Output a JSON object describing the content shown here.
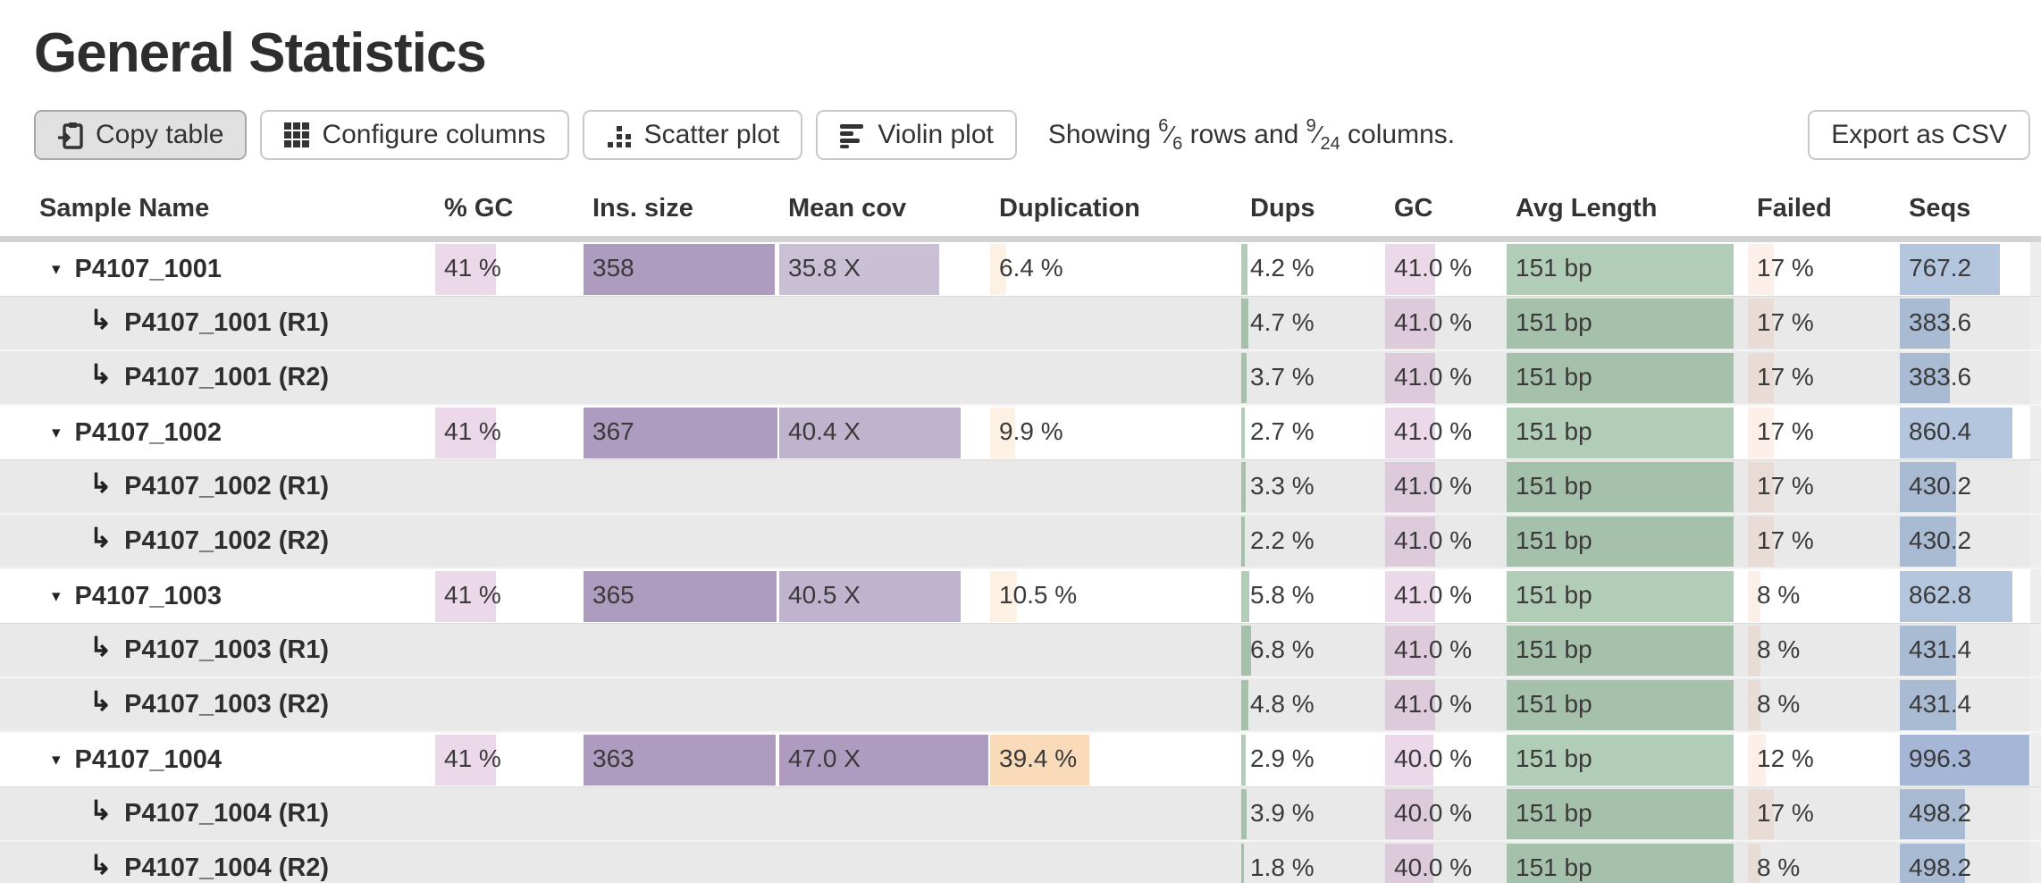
{
  "page": {
    "title": "General Statistics"
  },
  "toolbar": {
    "copy_label": "Copy table",
    "configure_label": "Configure columns",
    "scatter_label": "Scatter plot",
    "violin_label": "Violin plot",
    "export_label": "Export as CSV",
    "showing": {
      "prefix": "Showing",
      "rows_shown": "6",
      "rows_total": "6",
      "middle": "rows and",
      "cols_shown": "9",
      "cols_total": "24",
      "suffix": "columns."
    }
  },
  "icons": {
    "copy": "clipboard-icon",
    "configure": "grid-icon",
    "scatter": "scatter-dots-icon",
    "violin": "violin-bars-icon",
    "collapse_marker": "▾",
    "subrow_marker": "↳"
  },
  "colors": {
    "pink": "rgba(202,153,196,0.38)",
    "purple_dark": "rgba(80,45,120,0.47)",
    "purple_mid": "rgba(80,45,120,0.36)",
    "purple_light": "rgba(80,45,120,0.30)",
    "purple_partial": "rgba(80,45,120,0.40)",
    "cream_light": "rgba(240,170,90,0.16)",
    "cream_dark": "rgba(240,170,90,0.42)",
    "cream_partial": "rgba(240,170,90,0.38)",
    "green": "rgba(95,150,105,0.48)",
    "salmon": "rgba(235,150,110,0.15)",
    "blue": "rgba(105,140,190,0.50)",
    "blue_dark": "rgba(100,130,185,0.58)"
  },
  "table": {
    "columns": [
      {
        "id": "sample",
        "label": "Sample Name"
      },
      {
        "id": "pct_gc",
        "label": "% GC"
      },
      {
        "id": "ins_size",
        "label": "Ins. size"
      },
      {
        "id": "mean_cov",
        "label": "Mean cov"
      },
      {
        "id": "duplication",
        "label": "Duplication"
      },
      {
        "id": "dups",
        "label": "Dups"
      },
      {
        "id": "gc",
        "label": "GC"
      },
      {
        "id": "avg_length",
        "label": "Avg Length"
      },
      {
        "id": "failed",
        "label": "Failed"
      },
      {
        "id": "seqs",
        "label": "Seqs"
      }
    ],
    "rows": [
      {
        "name": "P4107_1001",
        "type": "main",
        "cells": {
          "pct_gc": {
            "t": "41 %",
            "p": 41,
            "c": "pink"
          },
          "ins_size": {
            "t": "358",
            "p": 97.5,
            "c": "purple_dark"
          },
          "mean_cov": {
            "t": "35.8 X",
            "p": 76,
            "c": "purple_light"
          },
          "duplication": {
            "t": "6.4 %",
            "p": 6.4,
            "c": "cream_light"
          },
          "dups": {
            "t": "4.2 %",
            "p": 4.2,
            "c": "green"
          },
          "gc": {
            "t": "41.0 %",
            "p": 41,
            "c": "pink"
          },
          "avg_length": {
            "t": "151 bp",
            "p": 94,
            "c": "green"
          },
          "failed": {
            "t": "17 %",
            "p": 17,
            "c": "salmon"
          },
          "seqs": {
            "t": "767.2",
            "p": 76.7,
            "c": "blue"
          }
        }
      },
      {
        "name": "P4107_1001 (R1)",
        "type": "sub",
        "cells": {
          "dups": {
            "t": "4.7 %",
            "p": 4.7,
            "c": "green"
          },
          "gc": {
            "t": "41.0 %",
            "p": 41,
            "c": "pink"
          },
          "avg_length": {
            "t": "151 bp",
            "p": 94,
            "c": "green"
          },
          "failed": {
            "t": "17 %",
            "p": 17,
            "c": "salmon"
          },
          "seqs": {
            "t": "383.6",
            "p": 38.4,
            "c": "blue"
          }
        }
      },
      {
        "name": "P4107_1001 (R2)",
        "type": "sub",
        "cells": {
          "dups": {
            "t": "3.7 %",
            "p": 3.7,
            "c": "green"
          },
          "gc": {
            "t": "41.0 %",
            "p": 41,
            "c": "pink"
          },
          "avg_length": {
            "t": "151 bp",
            "p": 94,
            "c": "green"
          },
          "failed": {
            "t": "17 %",
            "p": 17,
            "c": "salmon"
          },
          "seqs": {
            "t": "383.6",
            "p": 38.4,
            "c": "blue"
          }
        }
      },
      {
        "name": "P4107_1002",
        "type": "main",
        "cells": {
          "pct_gc": {
            "t": "41 %",
            "p": 41,
            "c": "pink"
          },
          "ins_size": {
            "t": "367",
            "p": 99,
            "c": "purple_dark"
          },
          "mean_cov": {
            "t": "40.4 X",
            "p": 86,
            "c": "purple_mid"
          },
          "duplication": {
            "t": "9.9 %",
            "p": 9.9,
            "c": "cream_light"
          },
          "dups": {
            "t": "2.7 %",
            "p": 2.7,
            "c": "green"
          },
          "gc": {
            "t": "41.0 %",
            "p": 41,
            "c": "pink"
          },
          "avg_length": {
            "t": "151 bp",
            "p": 94,
            "c": "green"
          },
          "failed": {
            "t": "17 %",
            "p": 17,
            "c": "salmon"
          },
          "seqs": {
            "t": "860.4",
            "p": 86,
            "c": "blue"
          }
        }
      },
      {
        "name": "P4107_1002 (R1)",
        "type": "sub",
        "cells": {
          "dups": {
            "t": "3.3 %",
            "p": 3.3,
            "c": "green"
          },
          "gc": {
            "t": "41.0 %",
            "p": 41,
            "c": "pink"
          },
          "avg_length": {
            "t": "151 bp",
            "p": 94,
            "c": "green"
          },
          "failed": {
            "t": "17 %",
            "p": 17,
            "c": "salmon"
          },
          "seqs": {
            "t": "430.2",
            "p": 43,
            "c": "blue"
          }
        }
      },
      {
        "name": "P4107_1002 (R2)",
        "type": "sub",
        "cells": {
          "dups": {
            "t": "2.2 %",
            "p": 2.2,
            "c": "green"
          },
          "gc": {
            "t": "41.0 %",
            "p": 41,
            "c": "pink"
          },
          "avg_length": {
            "t": "151 bp",
            "p": 94,
            "c": "green"
          },
          "failed": {
            "t": "17 %",
            "p": 17,
            "c": "salmon"
          },
          "seqs": {
            "t": "430.2",
            "p": 43,
            "c": "blue"
          }
        }
      },
      {
        "name": "P4107_1003",
        "type": "main",
        "cells": {
          "pct_gc": {
            "t": "41 %",
            "p": 41,
            "c": "pink"
          },
          "ins_size": {
            "t": "365",
            "p": 98.5,
            "c": "purple_dark"
          },
          "mean_cov": {
            "t": "40.5 X",
            "p": 86,
            "c": "purple_mid"
          },
          "duplication": {
            "t": "10.5 %",
            "p": 10.5,
            "c": "cream_light"
          },
          "dups": {
            "t": "5.8 %",
            "p": 5.8,
            "c": "green"
          },
          "gc": {
            "t": "41.0 %",
            "p": 41,
            "c": "pink"
          },
          "avg_length": {
            "t": "151 bp",
            "p": 94,
            "c": "green"
          },
          "failed": {
            "t": "8 %",
            "p": 8,
            "c": "salmon"
          },
          "seqs": {
            "t": "862.8",
            "p": 86.3,
            "c": "blue"
          }
        }
      },
      {
        "name": "P4107_1003 (R1)",
        "type": "sub",
        "cells": {
          "dups": {
            "t": "6.8 %",
            "p": 6.8,
            "c": "green"
          },
          "gc": {
            "t": "41.0 %",
            "p": 41,
            "c": "pink"
          },
          "avg_length": {
            "t": "151 bp",
            "p": 94,
            "c": "green"
          },
          "failed": {
            "t": "8 %",
            "p": 8,
            "c": "salmon"
          },
          "seqs": {
            "t": "431.4",
            "p": 43.1,
            "c": "blue"
          }
        }
      },
      {
        "name": "P4107_1003 (R2)",
        "type": "sub",
        "cells": {
          "dups": {
            "t": "4.8 %",
            "p": 4.8,
            "c": "green"
          },
          "gc": {
            "t": "41.0 %",
            "p": 41,
            "c": "pink"
          },
          "avg_length": {
            "t": "151 bp",
            "p": 94,
            "c": "green"
          },
          "failed": {
            "t": "8 %",
            "p": 8,
            "c": "salmon"
          },
          "seqs": {
            "t": "431.4",
            "p": 43.1,
            "c": "blue"
          }
        }
      },
      {
        "name": "P4107_1004",
        "type": "main",
        "cells": {
          "pct_gc": {
            "t": "41 %",
            "p": 41,
            "c": "pink"
          },
          "ins_size": {
            "t": "363",
            "p": 98,
            "c": "purple_dark"
          },
          "mean_cov": {
            "t": "47.0 X",
            "p": 99,
            "c": "purple_dark"
          },
          "duplication": {
            "t": "39.4 %",
            "p": 39.4,
            "c": "cream_dark"
          },
          "dups": {
            "t": "2.9 %",
            "p": 2.9,
            "c": "green"
          },
          "gc": {
            "t": "40.0 %",
            "p": 40,
            "c": "pink"
          },
          "avg_length": {
            "t": "151 bp",
            "p": 94,
            "c": "green"
          },
          "failed": {
            "t": "12 %",
            "p": 12,
            "c": "salmon"
          },
          "seqs": {
            "t": "996.3",
            "p": 99.6,
            "c": "blue_dark"
          }
        }
      },
      {
        "name": "P4107_1004 (R1)",
        "type": "sub",
        "cells": {
          "dups": {
            "t": "3.9 %",
            "p": 3.9,
            "c": "green"
          },
          "gc": {
            "t": "40.0 %",
            "p": 40,
            "c": "pink"
          },
          "avg_length": {
            "t": "151 bp",
            "p": 94,
            "c": "green"
          },
          "failed": {
            "t": "17 %",
            "p": 17,
            "c": "salmon"
          },
          "seqs": {
            "t": "498.2",
            "p": 49.8,
            "c": "blue"
          }
        }
      },
      {
        "name": "P4107_1004 (R2)",
        "type": "sub",
        "cells": {
          "dups": {
            "t": "1.8 %",
            "p": 1.8,
            "c": "green"
          },
          "gc": {
            "t": "40.0 %",
            "p": 40,
            "c": "pink"
          },
          "avg_length": {
            "t": "151 bp",
            "p": 94,
            "c": "green"
          },
          "failed": {
            "t": "8 %",
            "p": 8,
            "c": "salmon"
          },
          "seqs": {
            "t": "498.2",
            "p": 49.8,
            "c": "blue"
          }
        }
      },
      {
        "name": "",
        "type": "partial",
        "cells": {
          "pct_gc": {
            "t": "",
            "p": 41,
            "c": "pink"
          },
          "ins_size": {
            "t": "",
            "p": 99,
            "c": "purple_dark"
          },
          "mean_cov": {
            "t": "",
            "p": 97,
            "c": "purple_partial"
          },
          "duplication": {
            "t": "",
            "p": 27,
            "c": "cream_partial"
          },
          "dups": {
            "t": "",
            "p": 2.5,
            "c": "green"
          },
          "gc": {
            "t": "",
            "p": 41,
            "c": "pink"
          },
          "avg_length": {
            "t": "",
            "p": 94,
            "c": "green"
          },
          "failed": {
            "t": "",
            "p": 5,
            "c": "salmon"
          },
          "seqs": {
            "t": "",
            "p": 70,
            "c": "blue"
          }
        }
      }
    ]
  }
}
